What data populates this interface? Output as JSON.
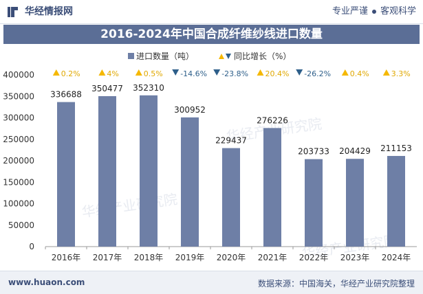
{
  "header": {
    "brand_name": "华经情报网",
    "tagline_left": "专业严谨",
    "tagline_right": "客观科学"
  },
  "footer": {
    "website": "www.huaon.com",
    "source": "数据来源：中国海关，华经产业研究院整理"
  },
  "watermark": "华经产业研究院",
  "colors": {
    "bar": "#6e7fa6",
    "title_bg": "#5b6e96",
    "up": "#f5b800",
    "down": "#2e5f8a",
    "growth_text_up": "#e0a800",
    "growth_text_down": "#2e5f8a"
  },
  "chart_data": {
    "type": "bar",
    "title": "2016-2024年中国合成纤维纱线进口数量",
    "categories": [
      "2016年",
      "2017年",
      "2018年",
      "2019年",
      "2020年",
      "2021年",
      "2022年",
      "2023年",
      "2024年"
    ],
    "series": [
      {
        "name": "进口数量（吨）",
        "values": [
          336688,
          350477,
          352310,
          300952,
          229437,
          276226,
          203733,
          204429,
          211153
        ]
      }
    ],
    "growth": {
      "name": "同比增长（%）",
      "labels": [
        "0.2%",
        "4%",
        "0.5%",
        "-14.6%",
        "-23.8%",
        "20.4%",
        "-26.2%",
        "0.4%",
        "3.3%"
      ],
      "values": [
        0.2,
        4,
        0.5,
        -14.6,
        -23.8,
        20.4,
        -26.2,
        0.4,
        3.3
      ]
    },
    "y_ticks": [
      0,
      50000,
      100000,
      150000,
      200000,
      250000,
      300000,
      350000,
      400000
    ],
    "ylim": [
      0,
      400000
    ],
    "grid": false,
    "legend_position": "top-center"
  }
}
